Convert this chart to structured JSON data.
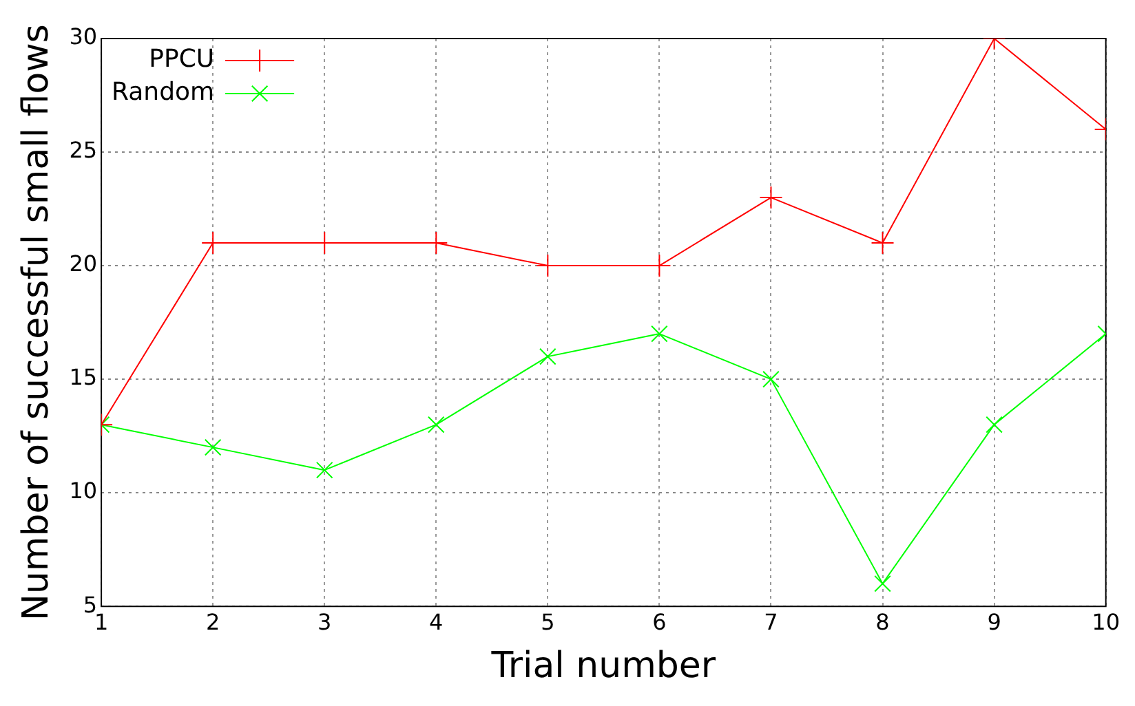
{
  "chart_data": {
    "type": "line",
    "xlabel": "Trial number",
    "ylabel": "Number of successful small flows",
    "x": [
      1,
      2,
      3,
      4,
      5,
      6,
      7,
      8,
      9,
      10
    ],
    "series": [
      {
        "name": "PPCU",
        "color": "#ff0000",
        "marker": "cross",
        "values": [
          13,
          21,
          21,
          21,
          20,
          20,
          23,
          21,
          30,
          26
        ]
      },
      {
        "name": "Random",
        "color": "#00ff00",
        "marker": "cross",
        "values": [
          13,
          12,
          11,
          13,
          16,
          17,
          15,
          6,
          13,
          17
        ]
      }
    ],
    "xlim": [
      1,
      10
    ],
    "xticks": [
      1,
      2,
      3,
      4,
      5,
      6,
      7,
      8,
      9,
      10
    ],
    "ylim": [
      5,
      30
    ],
    "yticks": [
      5,
      10,
      15,
      20,
      25,
      30
    ],
    "grid": true,
    "legend": "top left",
    "line_style": "solid"
  }
}
